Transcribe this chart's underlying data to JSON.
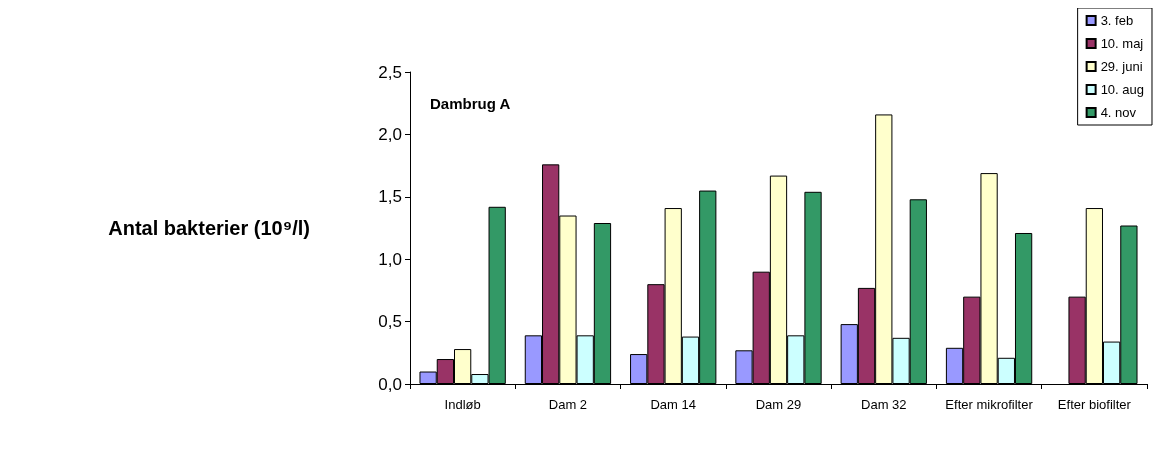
{
  "chart_data": {
    "type": "bar",
    "ylabel": "Antal bakterier (10⁹/l)",
    "annotations": [
      "Dambrug A"
    ],
    "categories": [
      "Indløb",
      "Dam 2",
      "Dam 14",
      "Dam 29",
      "Dam 32",
      "Efter mikrofilter",
      "Efter biofilter"
    ],
    "series": [
      {
        "name": "3. feb",
        "color": "#9999ff",
        "values": [
          0.1,
          0.39,
          0.24,
          0.27,
          0.48,
          0.29,
          null
        ]
      },
      {
        "name": "10. maj",
        "color": "#993366",
        "values": [
          0.2,
          1.76,
          0.8,
          0.9,
          0.77,
          0.7,
          0.7
        ]
      },
      {
        "name": "29. juni",
        "color": "#ffffcc",
        "values": [
          0.28,
          1.35,
          1.41,
          1.67,
          2.16,
          1.69,
          1.41
        ]
      },
      {
        "name": "10. aug",
        "color": "#ccffff",
        "values": [
          0.08,
          0.39,
          0.38,
          0.39,
          0.37,
          0.21,
          0.34
        ]
      },
      {
        "name": "4. nov",
        "color": "#339966",
        "values": [
          1.42,
          1.29,
          1.55,
          1.54,
          1.48,
          1.21,
          1.27
        ]
      }
    ],
    "ylim": [
      0,
      2.5
    ],
    "yticks": [
      {
        "value": 0,
        "label": "0,0"
      },
      {
        "value": 0.5,
        "label": "0,5"
      },
      {
        "value": 1,
        "label": "1,0"
      },
      {
        "value": 1.5,
        "label": "1,5"
      },
      {
        "value": 2,
        "label": "2,0"
      },
      {
        "value": 2.5,
        "label": "2,5"
      }
    ],
    "grid": false,
    "legend": "top right"
  }
}
